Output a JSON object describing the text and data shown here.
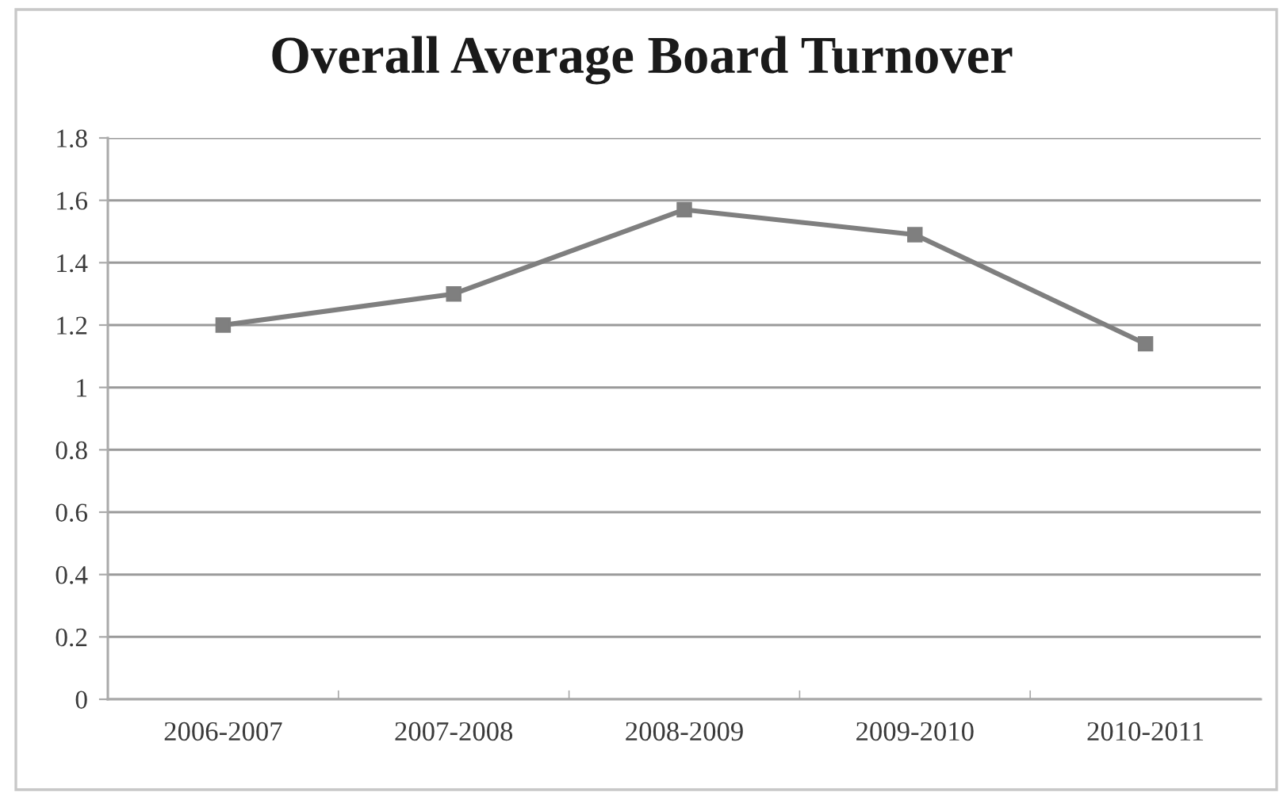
{
  "chart_data": {
    "type": "line",
    "title": "Overall Average Board Turnover",
    "categories": [
      "2006-2007",
      "2007-2008",
      "2008-2009",
      "2009-2010",
      "2010-2011"
    ],
    "series": [
      {
        "color": "#7f7f7f",
        "values": [
          1.2,
          1.3,
          1.57,
          1.49,
          1.14
        ]
      }
    ],
    "ylim": [
      0,
      1.8
    ],
    "yticks": [
      0,
      0.2,
      0.4,
      0.6,
      0.8,
      1,
      1.2,
      1.4,
      1.6,
      1.8
    ],
    "grid": "y",
    "marker": "square",
    "line_style": "solid"
  }
}
